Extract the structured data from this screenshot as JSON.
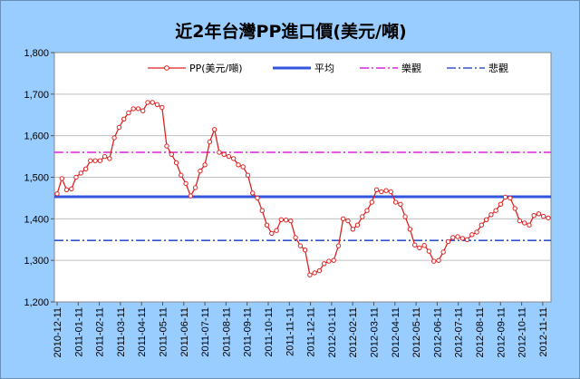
{
  "chart_data": {
    "type": "line",
    "title": "近2年台灣PP進口價(美元/噸)",
    "xlabel": "",
    "ylabel": "",
    "ylim": [
      1200,
      1800
    ],
    "yticks": [
      "1,200",
      "1,300",
      "1,400",
      "1,500",
      "1,600",
      "1,700",
      "1,800"
    ],
    "grid": true,
    "legend_placement": "top",
    "x_tick_labels": [
      "2010-12-11",
      "2011-01-11",
      "2011-02-11",
      "2011-03-11",
      "2011-04-11",
      "2011-05-11",
      "2011-06-11",
      "2011-07-11",
      "2011-08-11",
      "2011-09-11",
      "2011-10-11",
      "2011-11-11",
      "2011-12-11",
      "2012-01-11",
      "2012-02-11",
      "2012-03-11",
      "2012-04-11",
      "2012-05-11",
      "2012-06-11",
      "2012-07-11",
      "2012-08-11",
      "2012-09-11",
      "2012-10-11",
      "2012-11-11"
    ],
    "series": [
      {
        "name": "PP(美元/噸)",
        "color": "#dd2222",
        "style": "line-with-hollow-markers",
        "values": [
          1460,
          1497,
          1470,
          1472,
          1500,
          1510,
          1520,
          1540,
          1540,
          1540,
          1550,
          1545,
          1595,
          1620,
          1640,
          1655,
          1665,
          1665,
          1660,
          1680,
          1680,
          1675,
          1668,
          1575,
          1555,
          1535,
          1505,
          1485,
          1455,
          1475,
          1515,
          1530,
          1585,
          1615,
          1560,
          1555,
          1550,
          1545,
          1530,
          1525,
          1505,
          1462,
          1450,
          1420,
          1385,
          1365,
          1372,
          1398,
          1397,
          1395,
          1355,
          1335,
          1325,
          1265,
          1270,
          1275,
          1292,
          1298,
          1300,
          1335,
          1400,
          1395,
          1375,
          1385,
          1405,
          1420,
          1440,
          1470,
          1465,
          1468,
          1465,
          1440,
          1435,
          1405,
          1375,
          1337,
          1330,
          1336,
          1322,
          1298,
          1300,
          1320,
          1345,
          1355,
          1357,
          1353,
          1350,
          1362,
          1368,
          1385,
          1398,
          1410,
          1420,
          1435,
          1452,
          1450,
          1425,
          1395,
          1390,
          1385,
          1408,
          1412,
          1406,
          1402
        ]
      },
      {
        "name": "平均",
        "color": "#3355dd",
        "style": "solid",
        "values": [
          1453
        ]
      },
      {
        "name": "樂觀",
        "color": "#dd22dd",
        "style": "dash-dot",
        "values": [
          1560
        ]
      },
      {
        "name": "悲觀",
        "color": "#3355cc",
        "style": "dash-dot",
        "values": [
          1348
        ]
      }
    ]
  }
}
